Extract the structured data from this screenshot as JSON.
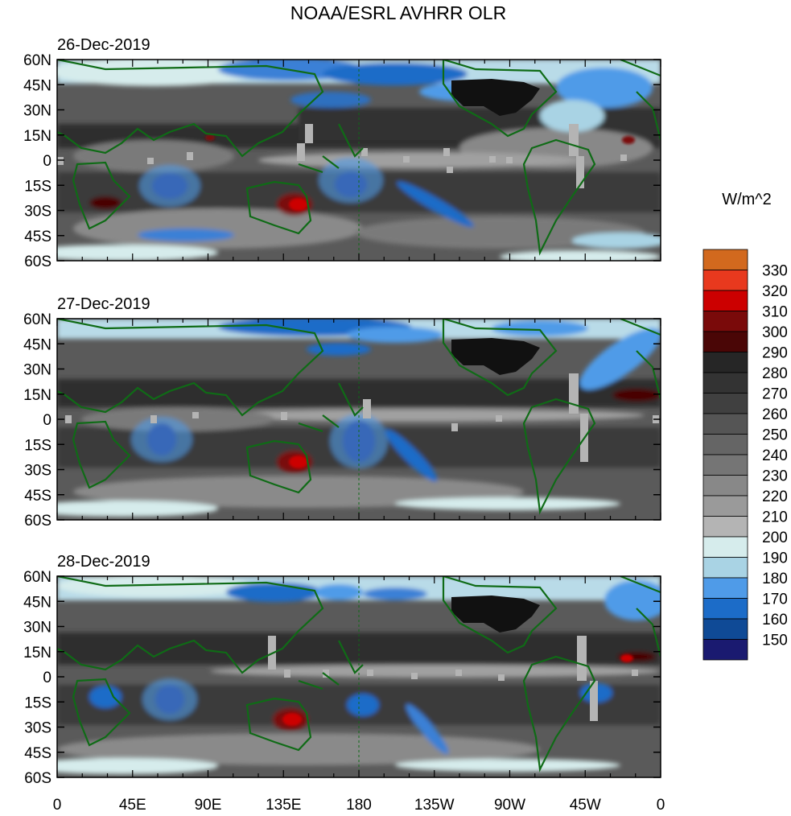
{
  "title": "NOAA/ESRL AVHRR OLR",
  "units_label": "W/m^2",
  "panels": [
    {
      "date": "26-Dec-2019"
    },
    {
      "date": "27-Dec-2019"
    },
    {
      "date": "28-Dec-2019"
    }
  ],
  "lat_ticks": [
    "60N",
    "45N",
    "30N",
    "15N",
    "0",
    "15S",
    "30S",
    "45S",
    "60S"
  ],
  "lon_ticks": [
    "0",
    "45E",
    "90E",
    "135E",
    "180",
    "135W",
    "90W",
    "45W",
    "0"
  ],
  "colorbar": {
    "labels": [
      "330",
      "320",
      "310",
      "300",
      "290",
      "280",
      "270",
      "260",
      "250",
      "240",
      "230",
      "220",
      "210",
      "200",
      "190",
      "180",
      "170",
      "160",
      "150"
    ],
    "colors": [
      "#d2691e",
      "#e8391e",
      "#cc0000",
      "#7a0a0a",
      "#4a0606",
      "#262626",
      "#333333",
      "#404040",
      "#555555",
      "#656565",
      "#757575",
      "#888888",
      "#9a9a9a",
      "#b4b4b4",
      "#d6ecec",
      "#a9d3e4",
      "#4f9be8",
      "#1c6cc8",
      "#0f4a96",
      "#1a1a70"
    ]
  },
  "map_colors": {
    "coast": "#0f6b16",
    "land_usa": "#111111"
  }
}
